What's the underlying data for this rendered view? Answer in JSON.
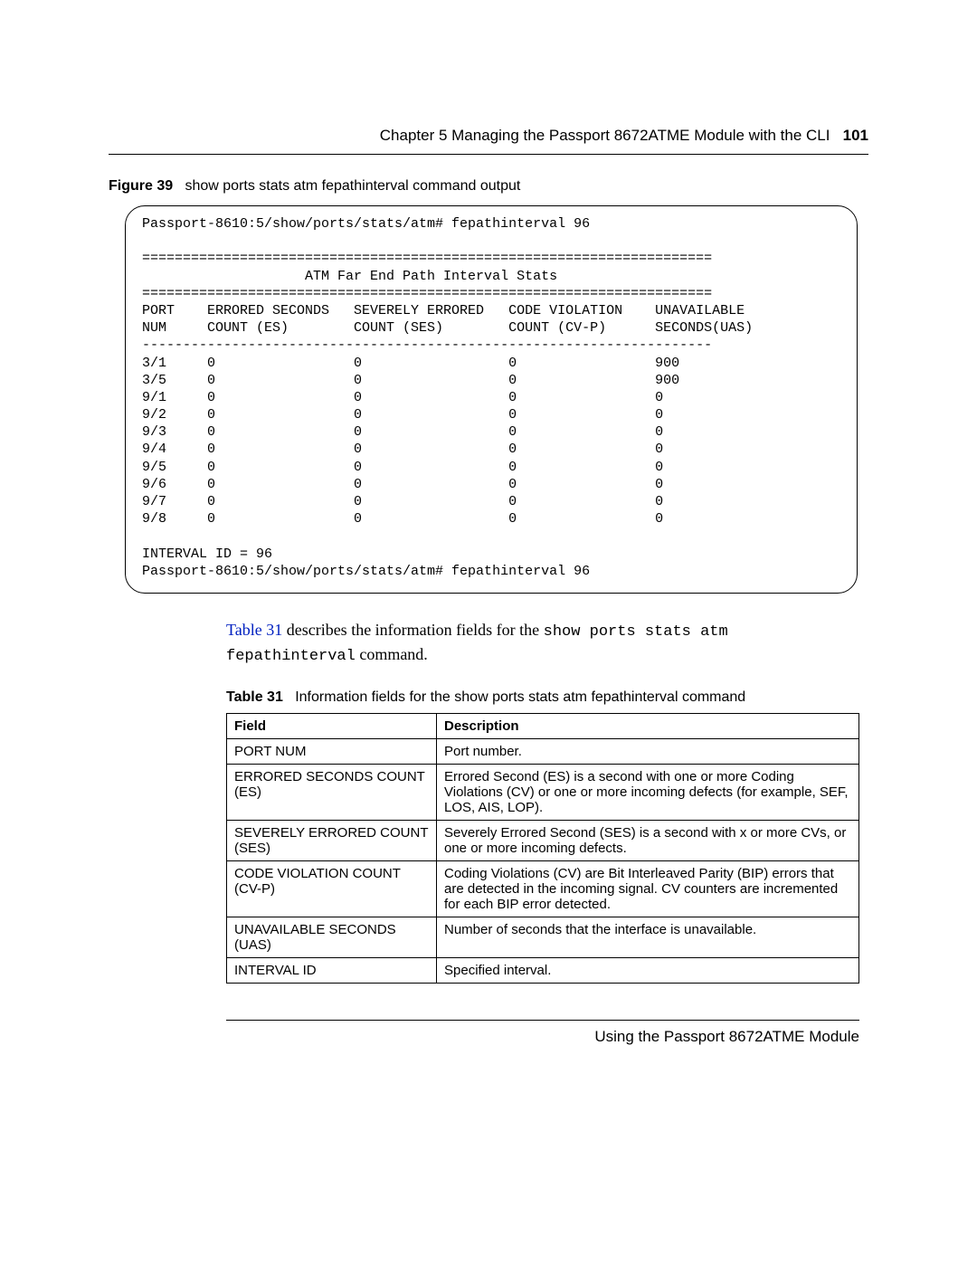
{
  "header": {
    "chapter": "Chapter 5  Managing the Passport 8672ATME Module with the CLI",
    "page_number": "101"
  },
  "figure": {
    "label": "Figure 39",
    "title": "show ports stats atm fepathinterval command output"
  },
  "terminal": {
    "prompt1": "Passport-8610:5/show/ports/stats/atm# fepathinterval 96",
    "dbl_line": "======================================================================",
    "title": "                    ATM Far End Path Interval Stats",
    "col_hdr1": "PORT    ERRORED SECONDS   SEVERELY ERRORED   CODE VIOLATION    UNAVAILABLE",
    "col_hdr2": "NUM     COUNT (ES)        COUNT (SES)        COUNT (CV-P)      SECONDS(UAS)",
    "dash_line": "----------------------------------------------------------------------",
    "rows": [
      "3/1     0                 0                  0                 900",
      "3/5     0                 0                  0                 900",
      "9/1     0                 0                  0                 0",
      "9/2     0                 0                  0                 0",
      "9/3     0                 0                  0                 0",
      "9/4     0                 0                  0                 0",
      "9/5     0                 0                  0                 0",
      "9/6     0                 0                  0                 0",
      "9/7     0                 0                  0                 0",
      "9/8     0                 0                  0                 0"
    ],
    "interval_line": "INTERVAL ID = 96",
    "prompt2": "Passport-8610:5/show/ports/stats/atm# fepathinterval 96"
  },
  "para": {
    "link": "Table 31",
    "t1": " describes the information fields for the ",
    "mono1": "show ports stats atm fepathinterval",
    "t2": " command."
  },
  "table_caption": {
    "label": "Table 31",
    "title": "Information fields for the show ports stats atm fepathinterval command"
  },
  "info_table": {
    "head": {
      "c0": "Field",
      "c1": "Description"
    },
    "rows": [
      {
        "c0": "PORT NUM",
        "c1": "Port number."
      },
      {
        "c0": "ERRORED SECONDS COUNT (ES)",
        "c1": "Errored Second (ES) is a second with one or more Coding Violations (CV) or one or more incoming defects (for example, SEF, LOS, AIS, LOP)."
      },
      {
        "c0": "SEVERELY ERRORED COUNT (SES)",
        "c1": "Severely Errored Second (SES) is a second with x or more CVs, or one or more incoming defects."
      },
      {
        "c0": "CODE VIOLATION COUNT (CV-P)",
        "c1": "Coding Violations (CV) are Bit Interleaved Parity (BIP) errors that are detected in the incoming signal.  CV counters are incremented for each BIP error detected."
      },
      {
        "c0": "UNAVAILABLE SECONDS (UAS)",
        "c1": "Number of seconds that the interface is unavailable."
      },
      {
        "c0": "INTERVAL ID",
        "c1": "Specified interval."
      }
    ]
  },
  "footer": {
    "text": "Using the Passport 8672ATME Module"
  }
}
